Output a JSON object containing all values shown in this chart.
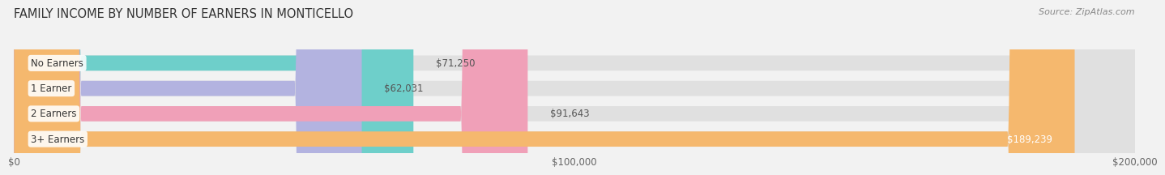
{
  "title": "FAMILY INCOME BY NUMBER OF EARNERS IN MONTICELLO",
  "source": "Source: ZipAtlas.com",
  "categories": [
    "No Earners",
    "1 Earner",
    "2 Earners",
    "3+ Earners"
  ],
  "values": [
    71250,
    62031,
    91643,
    189239
  ],
  "bar_colors": [
    "#6ecfca",
    "#b3b3e0",
    "#f0a0b8",
    "#f5b86e"
  ],
  "label_colors": [
    "#333333",
    "#333333",
    "#333333",
    "#ffffff"
  ],
  "value_labels": [
    "$71,250",
    "$62,031",
    "$91,643",
    "$189,239"
  ],
  "xmax": 200000,
  "xticks": [
    0,
    100000,
    200000
  ],
  "xtick_labels": [
    "$0",
    "$100,000",
    "$200,000"
  ],
  "background_color": "#f2f2f2",
  "bar_background_color": "#e0e0e0",
  "title_fontsize": 10.5,
  "source_fontsize": 8,
  "label_fontsize": 8.5,
  "value_fontsize": 8.5,
  "tick_fontsize": 8.5
}
